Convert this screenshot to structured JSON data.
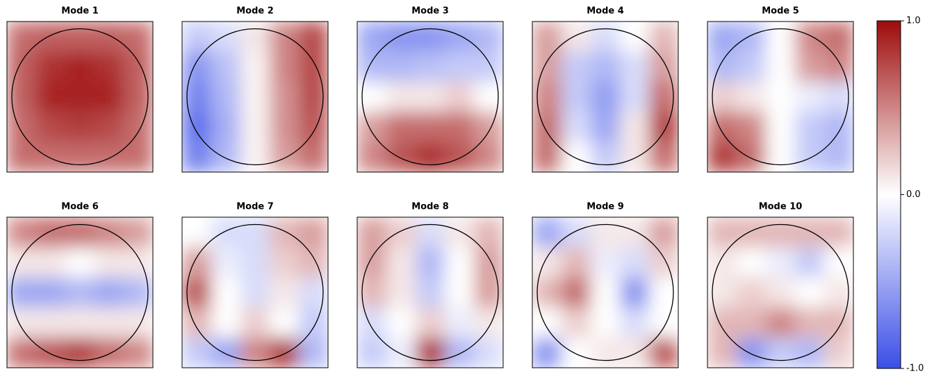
{
  "chart_data": [
    {
      "type": "heatmap",
      "title": "Mode 1",
      "values": [
        [
          0.6,
          0.65,
          0.65,
          0.65,
          0.6
        ],
        [
          0.65,
          0.85,
          0.9,
          0.85,
          0.65
        ],
        [
          0.65,
          0.9,
          0.9,
          0.9,
          0.65
        ],
        [
          0.6,
          0.75,
          0.8,
          0.75,
          0.6
        ],
        [
          0.6,
          0.6,
          0.6,
          0.6,
          0.6
        ]
      ]
    },
    {
      "type": "heatmap",
      "title": "Mode 2",
      "values": [
        [
          -0.3,
          -0.2,
          0.1,
          0.5,
          0.75
        ],
        [
          -0.6,
          -0.35,
          0.05,
          0.5,
          0.75
        ],
        [
          -0.7,
          -0.4,
          0.05,
          0.45,
          0.75
        ],
        [
          -0.8,
          -0.45,
          0.05,
          0.45,
          0.7
        ],
        [
          -0.7,
          -0.4,
          0.05,
          0.4,
          0.6
        ]
      ]
    },
    {
      "type": "heatmap",
      "title": "Mode 3",
      "values": [
        [
          -0.5,
          -0.6,
          -0.6,
          -0.5,
          -0.4
        ],
        [
          -0.4,
          -0.4,
          -0.35,
          -0.3,
          -0.3
        ],
        [
          0.0,
          0.1,
          0.1,
          0.2,
          0.0
        ],
        [
          0.4,
          0.6,
          0.6,
          0.6,
          0.4
        ],
        [
          0.5,
          0.7,
          0.85,
          0.7,
          0.5
        ]
      ]
    },
    {
      "type": "heatmap",
      "title": "Mode 4",
      "values": [
        [
          0.4,
          0.1,
          -0.2,
          0.0,
          0.3
        ],
        [
          0.4,
          -0.3,
          -0.4,
          -0.2,
          0.4
        ],
        [
          0.5,
          -0.3,
          -0.55,
          -0.2,
          0.6
        ],
        [
          0.6,
          -0.2,
          -0.5,
          0.1,
          0.8
        ],
        [
          0.6,
          0.0,
          -0.3,
          0.1,
          0.6
        ]
      ]
    },
    {
      "type": "heatmap",
      "title": "Mode 5",
      "values": [
        [
          -0.5,
          -0.4,
          0.0,
          0.5,
          0.6
        ],
        [
          -0.4,
          -0.3,
          0.0,
          0.4,
          0.5
        ],
        [
          0.2,
          0.1,
          0.0,
          -0.1,
          -0.2
        ],
        [
          0.6,
          0.5,
          0.0,
          -0.3,
          -0.4
        ],
        [
          0.8,
          0.6,
          0.0,
          -0.3,
          -0.4
        ]
      ]
    },
    {
      "type": "heatmap",
      "title": "Mode 6",
      "values": [
        [
          0.5,
          0.6,
          0.6,
          0.5,
          0.4
        ],
        [
          0.1,
          0.1,
          0.0,
          0.1,
          0.1
        ],
        [
          -0.5,
          -0.5,
          -0.4,
          -0.5,
          -0.4
        ],
        [
          0.1,
          0.1,
          0.1,
          0.1,
          0.1
        ],
        [
          0.6,
          0.7,
          0.8,
          0.6,
          0.5
        ]
      ]
    },
    {
      "type": "heatmap",
      "title": "Mode 7",
      "values": [
        [
          0.0,
          -0.2,
          -0.2,
          0.3,
          0.4
        ],
        [
          0.4,
          -0.1,
          -0.2,
          0.2,
          0.3
        ],
        [
          0.7,
          0.0,
          -0.2,
          0.1,
          -0.2
        ],
        [
          0.3,
          0.0,
          0.2,
          0.0,
          -0.3
        ],
        [
          -0.3,
          -0.5,
          0.5,
          0.8,
          -0.4
        ]
      ]
    },
    {
      "type": "heatmap",
      "title": "Mode 8",
      "values": [
        [
          0.4,
          0.2,
          -0.2,
          0.1,
          0.3
        ],
        [
          0.4,
          0.1,
          -0.4,
          0.0,
          0.4
        ],
        [
          0.3,
          0.1,
          -0.3,
          0.0,
          0.4
        ],
        [
          -0.2,
          0.0,
          0.2,
          -0.1,
          0.1
        ],
        [
          -0.3,
          -0.1,
          0.8,
          -0.4,
          -0.2
        ]
      ]
    },
    {
      "type": "heatmap",
      "title": "Mode 9",
      "values": [
        [
          -0.5,
          -0.2,
          0.1,
          0.1,
          0.4
        ],
        [
          0.1,
          0.3,
          -0.1,
          -0.2,
          0.2
        ],
        [
          0.3,
          0.6,
          0.0,
          -0.6,
          0.0
        ],
        [
          0.0,
          0.2,
          0.0,
          -0.2,
          0.0
        ],
        [
          -0.6,
          0.0,
          0.1,
          0.1,
          0.7
        ]
      ]
    },
    {
      "type": "heatmap",
      "title": "Mode 10",
      "values": [
        [
          0.3,
          0.3,
          0.3,
          0.3,
          0.3
        ],
        [
          0.1,
          0.0,
          -0.1,
          -0.3,
          0.0
        ],
        [
          0.1,
          0.2,
          0.1,
          0.0,
          0.1
        ],
        [
          0.3,
          0.3,
          0.5,
          0.3,
          0.3
        ],
        [
          0.3,
          -0.6,
          -0.3,
          -0.4,
          0.2
        ]
      ]
    }
  ],
  "colorbar": {
    "ylim": [
      -1,
      1
    ],
    "yticks": [
      {
        "value": -1,
        "label": "-1.0"
      },
      {
        "value": 0,
        "label": "0.0"
      },
      {
        "value": 1,
        "label": "1.0"
      }
    ],
    "colors": [
      "#3a4ee6",
      "#ffffff",
      "#9e0b0b"
    ]
  }
}
